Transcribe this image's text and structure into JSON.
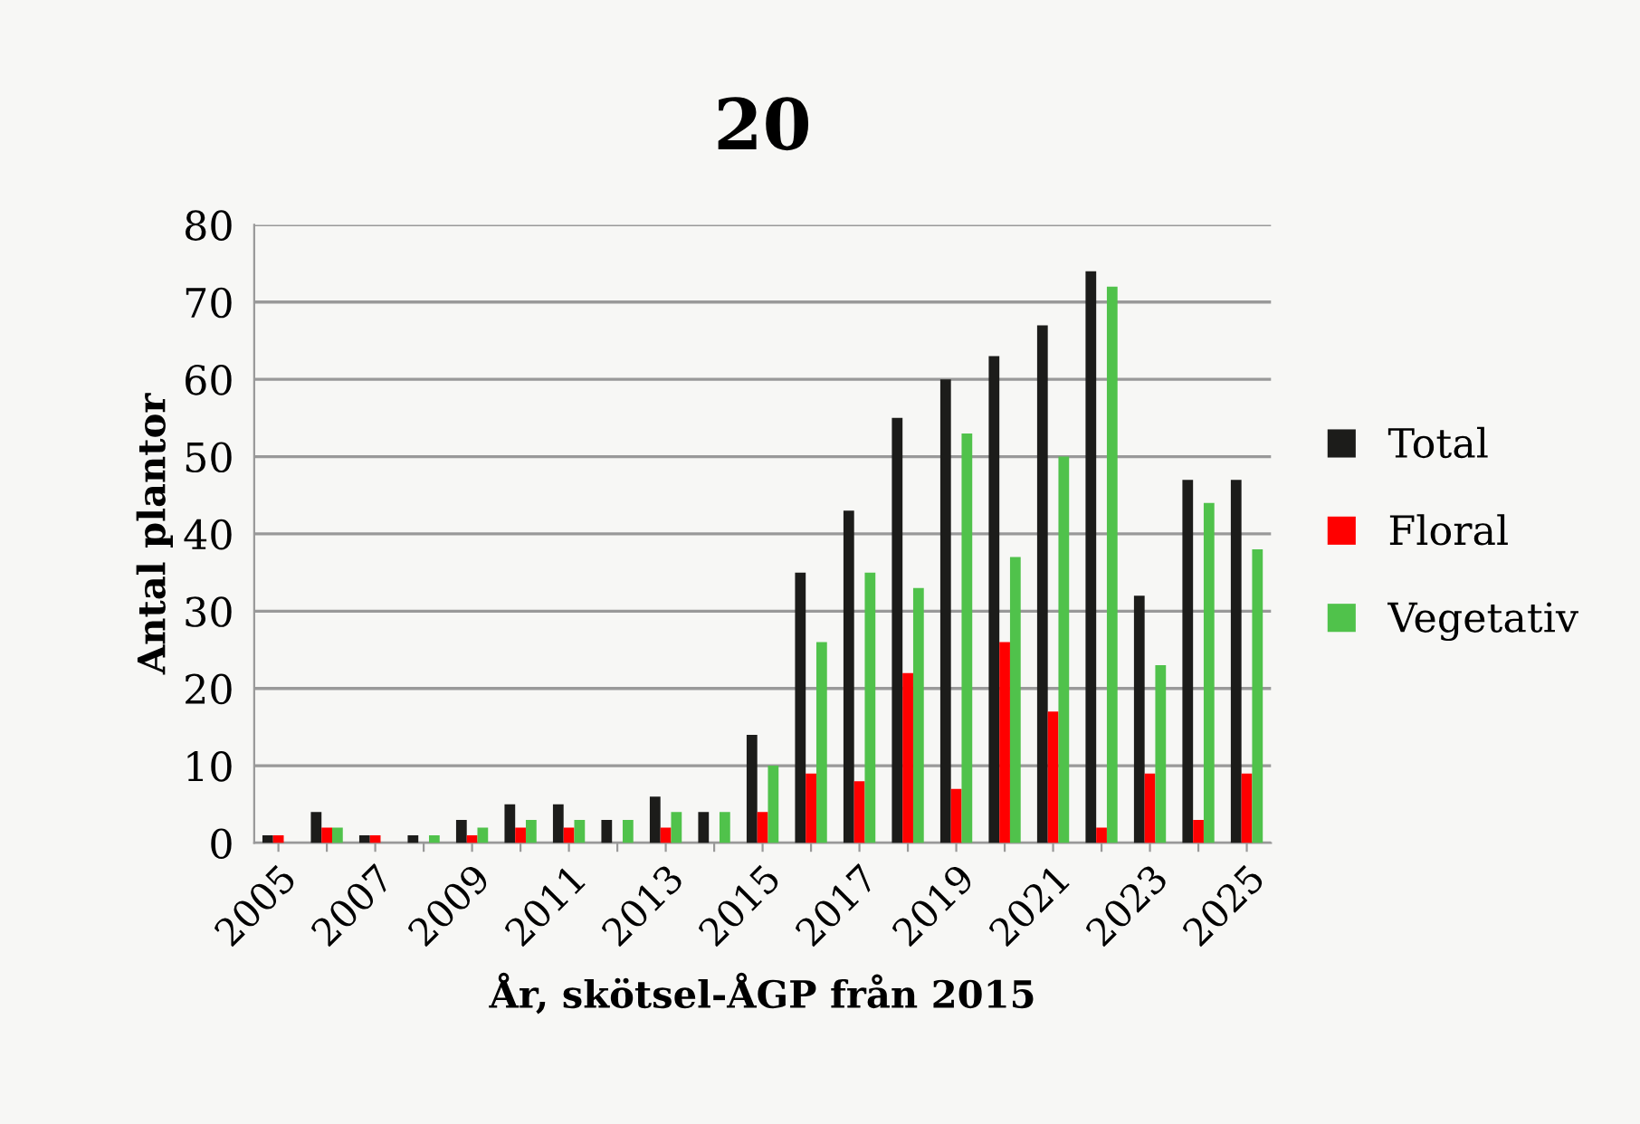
{
  "chart_data": {
    "type": "bar",
    "title": "20",
    "xlabel": "År, skötsel-ÅGP från 2015",
    "ylabel": "Antal plantor",
    "categories": [
      "2005",
      null,
      "2007",
      null,
      "2009",
      null,
      "2011",
      null,
      "2013",
      null,
      "2015",
      null,
      "2017",
      null,
      "2019",
      null,
      "2021",
      null,
      "2023",
      null,
      "2025"
    ],
    "series": [
      {
        "name": "Total",
        "color": "#1c1c1a",
        "values": [
          1,
          4,
          1,
          1,
          3,
          5,
          5,
          3,
          6,
          4,
          14,
          35,
          43,
          55,
          60,
          63,
          67,
          74,
          32,
          47,
          47
        ]
      },
      {
        "name": "Floral",
        "color": "#ff0000",
        "values": [
          1,
          2,
          1,
          0,
          1,
          2,
          2,
          0,
          2,
          0,
          4,
          9,
          8,
          22,
          7,
          26,
          17,
          2,
          9,
          3,
          9
        ]
      },
      {
        "name": "Vegetativ",
        "color": "#50c24b",
        "values": [
          0,
          2,
          0,
          1,
          2,
          3,
          3,
          3,
          4,
          4,
          10,
          26,
          35,
          33,
          53,
          37,
          50,
          72,
          23,
          44,
          38
        ]
      }
    ],
    "ylim": [
      0,
      80
    ],
    "yticks": [
      0,
      10,
      20,
      30,
      40,
      50,
      60,
      70,
      80
    ],
    "grid": "y",
    "legend": "right"
  }
}
